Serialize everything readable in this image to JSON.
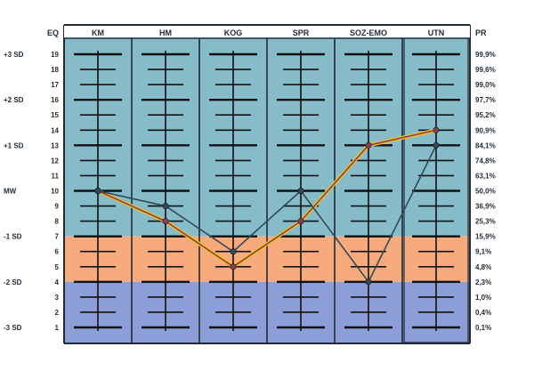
{
  "chart_data": {
    "type": "line",
    "title": "",
    "x_header": "EQ",
    "right_header": "PR",
    "categories": [
      "KM",
      "HM",
      "KOG",
      "SPR",
      "SOZ-EMO",
      "UTN"
    ],
    "y_ticks": [
      1,
      2,
      3,
      4,
      5,
      6,
      7,
      8,
      9,
      10,
      11,
      12,
      13,
      14,
      15,
      16,
      17,
      18,
      19
    ],
    "ylim": [
      1,
      19
    ],
    "sd_labels": [
      {
        "y": 19,
        "label": "+3 SD"
      },
      {
        "y": 16,
        "label": "+2 SD"
      },
      {
        "y": 13,
        "label": "+1 SD"
      },
      {
        "y": 10,
        "label": "MW"
      },
      {
        "y": 7,
        "label": "-1 SD"
      },
      {
        "y": 4,
        "label": "-2 SD"
      },
      {
        "y": 1,
        "label": "-3 SD"
      }
    ],
    "percentiles": [
      "0,1%",
      "0,4%",
      "1,0%",
      "2,3%",
      "4,8%",
      "9,1%",
      "15,9%",
      "25,3%",
      "36,9%",
      "50,0%",
      "63,1%",
      "74,8%",
      "84,1%",
      "90,9%",
      "95,2%",
      "97,7%",
      "99,0%",
      "99,6%",
      "99,9%"
    ],
    "bands": [
      {
        "from": 7,
        "to": 19,
        "color": "#86bcca"
      },
      {
        "from": 4,
        "to": 7,
        "color": "#f7ab7d"
      },
      {
        "from": 1,
        "to": 4,
        "color": "#8c9ed8"
      }
    ],
    "series": [
      {
        "values": [
          10,
          8,
          5,
          8,
          13,
          14
        ],
        "color": "#8a3d5a",
        "highlight": "#f0c21a",
        "marker": "dot"
      },
      {
        "values": [
          10,
          9,
          6,
          10,
          4,
          13
        ],
        "color": "#344a58",
        "marker": "dot"
      }
    ],
    "grid": false,
    "legend": "none"
  }
}
